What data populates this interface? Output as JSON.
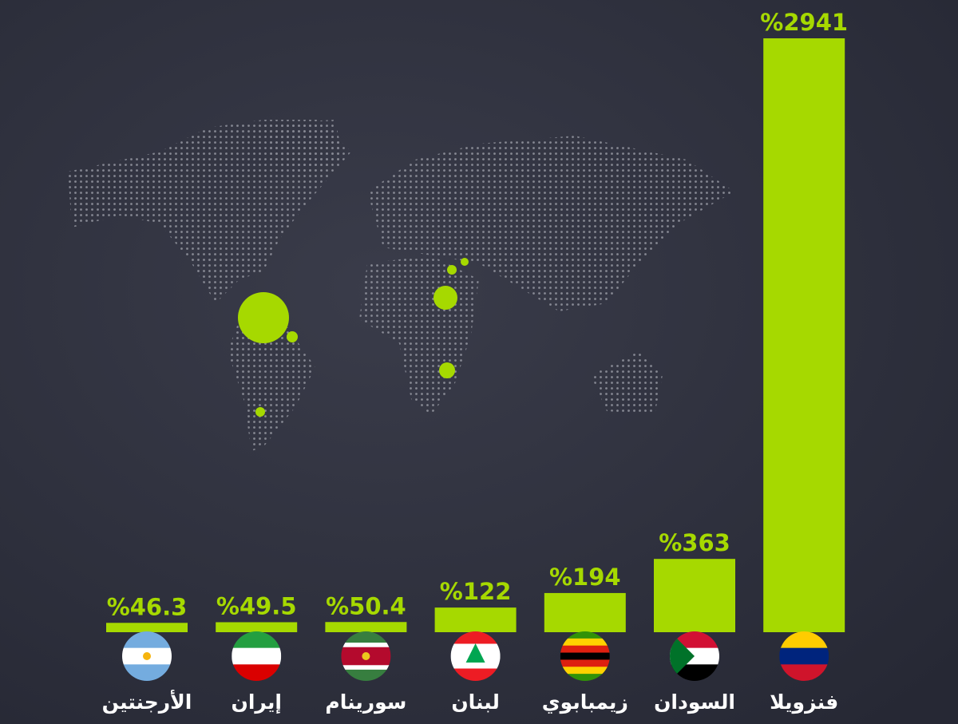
{
  "chart_data": {
    "type": "bar",
    "categories": [
      "الأرجنتين",
      "إيران",
      "سورينام",
      "لبنان",
      "زيمبابوي",
      "السودان",
      "فنزويلا"
    ],
    "values": [
      46.3,
      49.5,
      50.4,
      122,
      194,
      363,
      2941
    ],
    "value_labels": [
      "%46.3",
      "%49.5",
      "%50.4",
      "%122",
      "%194",
      "%363",
      "%2941"
    ],
    "color": "#a6d900"
  }
}
